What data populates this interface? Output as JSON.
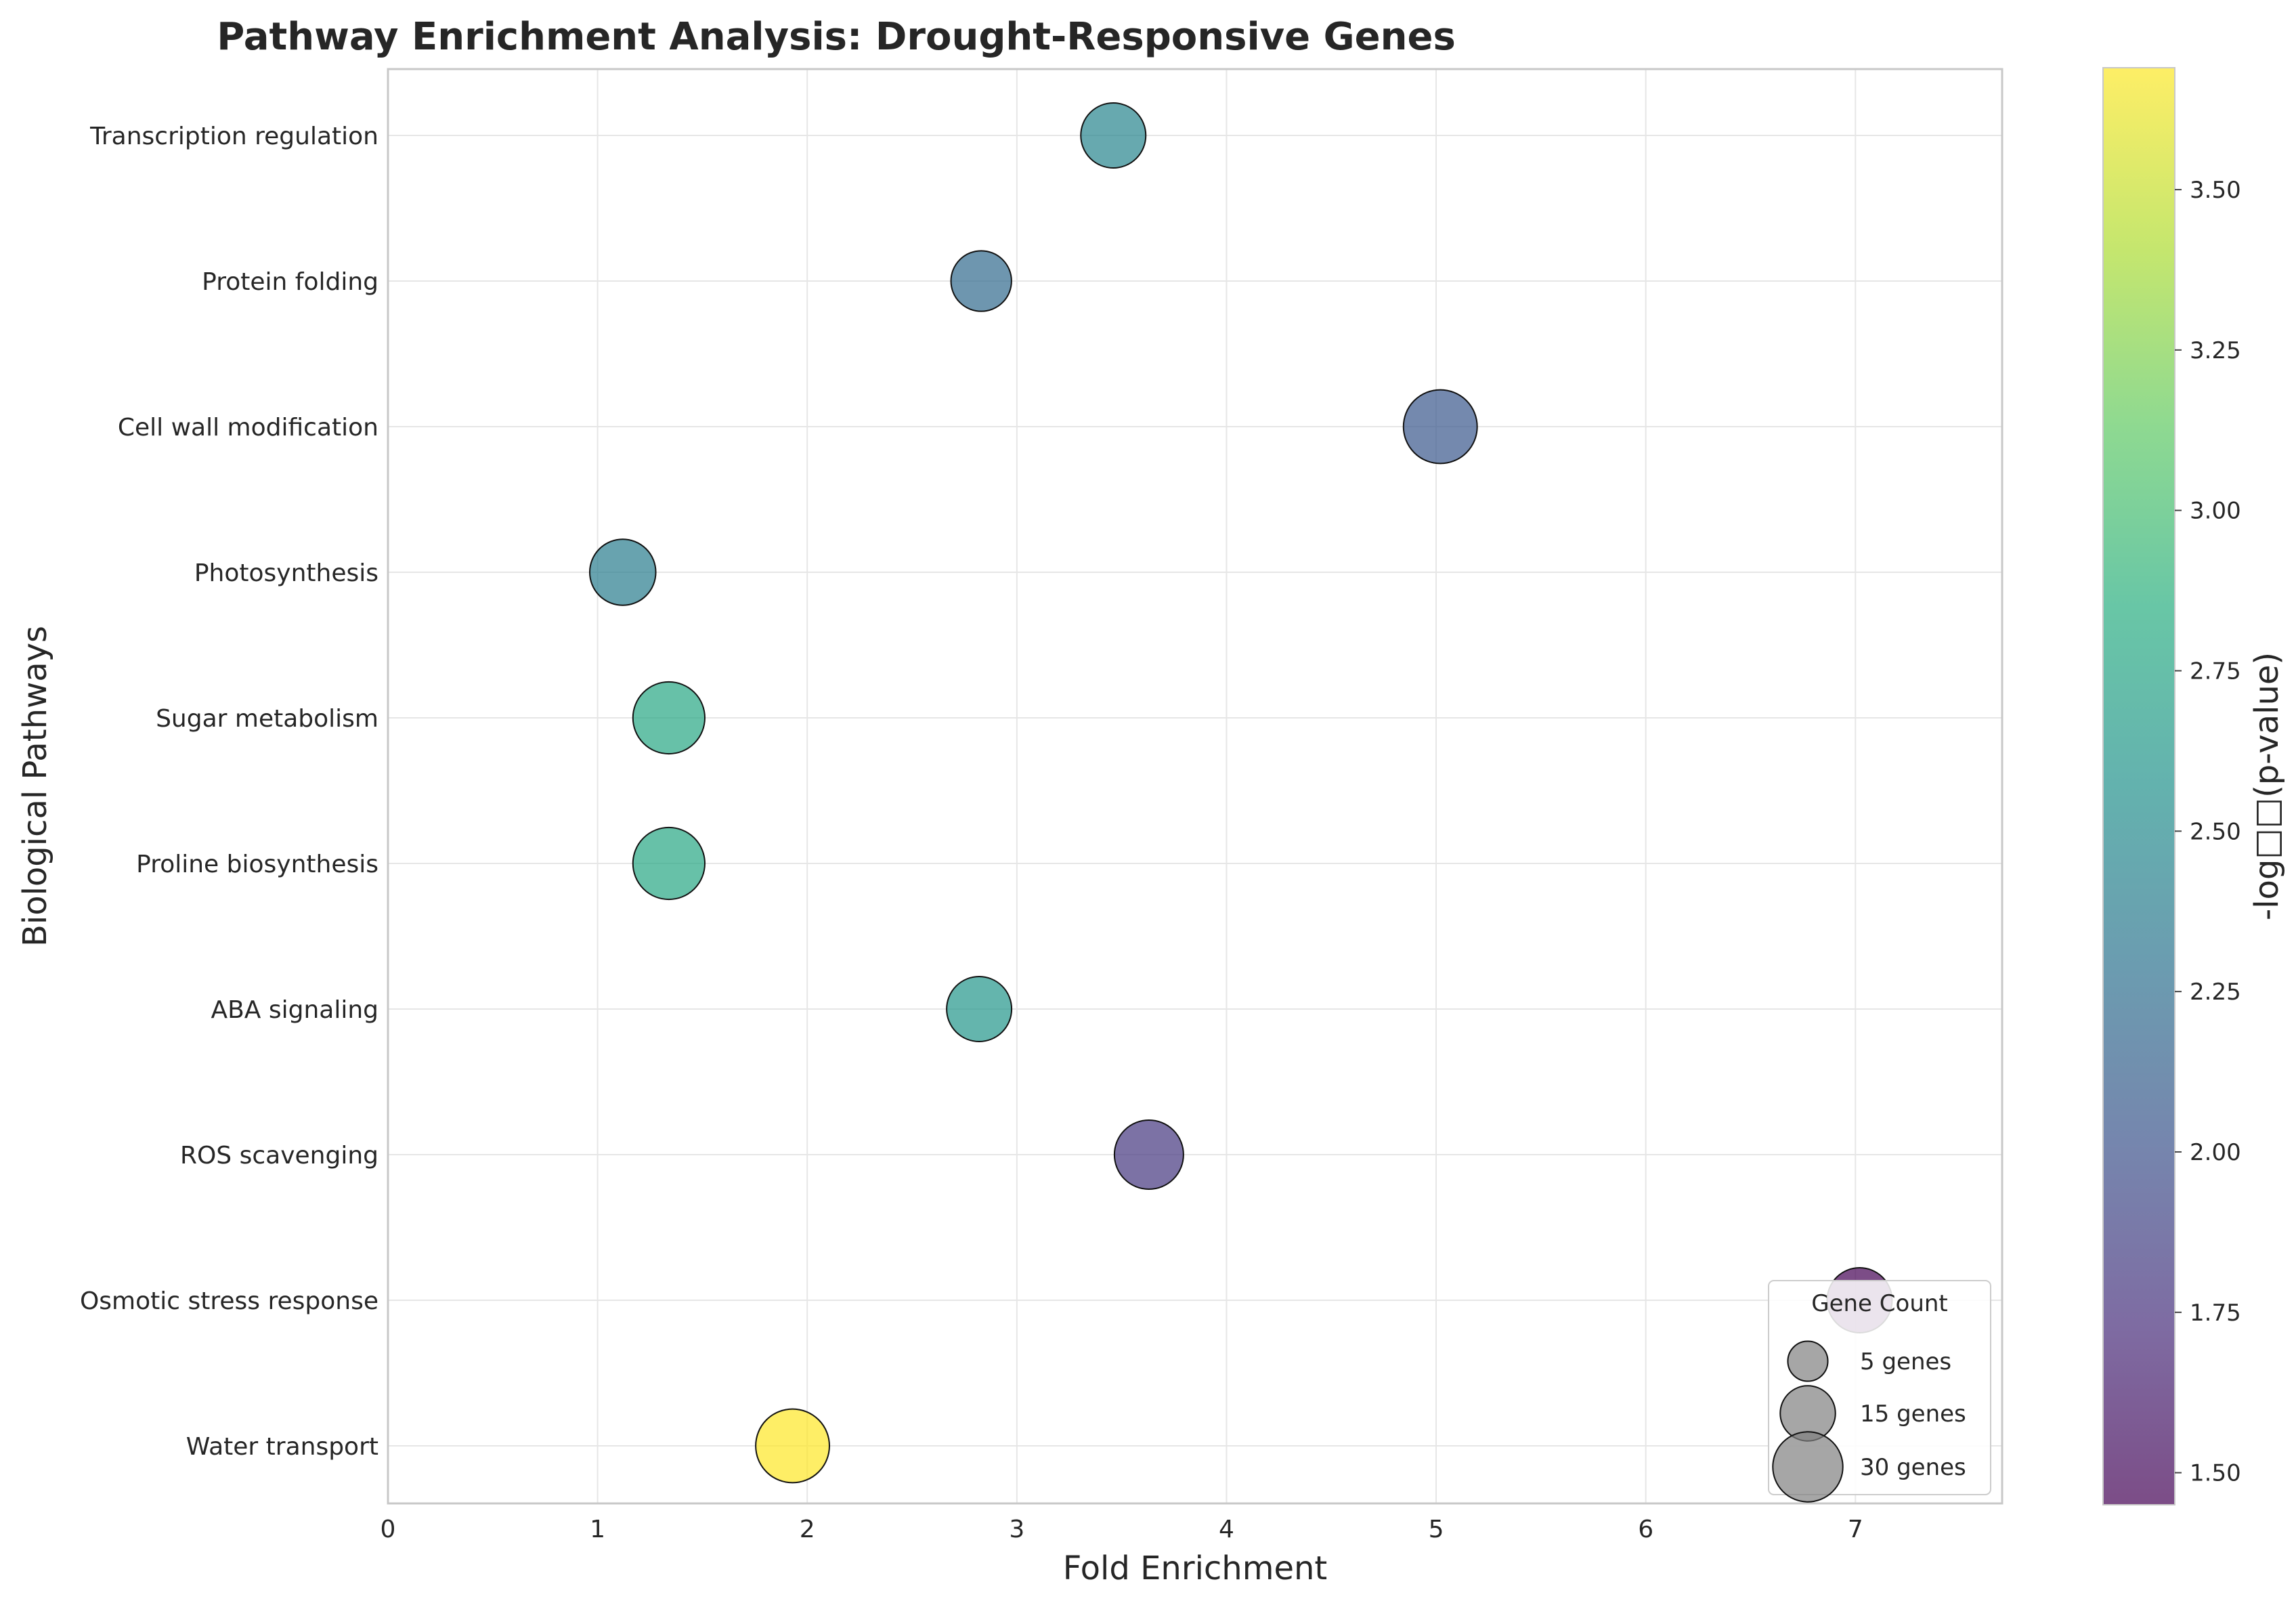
{
  "chart_data": {
    "type": "scatter",
    "title": "Pathway Enrichment Analysis: Drought-Responsive Genes",
    "xlabel": "Fold Enrichment",
    "ylabel": "Biological Pathways",
    "xlim": [
      0,
      7.7
    ],
    "xticks": [
      "0",
      "1",
      "2",
      "3",
      "4",
      "5",
      "6",
      "7"
    ],
    "grid": true,
    "colormap": "viridis",
    "colorbar": {
      "label": "-log□□(p-value)",
      "range": [
        1.45,
        3.69
      ],
      "ticks": [
        "1.50",
        "1.75",
        "2.00",
        "2.25",
        "2.50",
        "2.75",
        "3.00",
        "3.25",
        "3.50"
      ]
    },
    "categories": [
      "Water transport",
      "Osmotic stress response",
      "ROS scavenging",
      "ABA signaling",
      "Proline biosynthesis",
      "Sugar metabolism",
      "Photosynthesis",
      "Cell wall modification",
      "Protein folding",
      "Transcription regulation"
    ],
    "points": [
      {
        "pathway": "Water transport",
        "fold_enrichment": 1.93,
        "neg_log10_p": 3.69,
        "gene_count": 30
      },
      {
        "pathway": "Osmotic stress response",
        "fold_enrichment": 7.02,
        "neg_log10_p": 1.45,
        "gene_count": 21
      },
      {
        "pathway": "ROS scavenging",
        "fold_enrichment": 3.63,
        "neg_log10_p": 1.8,
        "gene_count": 25
      },
      {
        "pathway": "ABA signaling",
        "fold_enrichment": 2.82,
        "neg_log10_p": 2.62,
        "gene_count": 21
      },
      {
        "pathway": "Proline biosynthesis",
        "fold_enrichment": 1.34,
        "neg_log10_p": 2.78,
        "gene_count": 28
      },
      {
        "pathway": "Sugar metabolism",
        "fold_enrichment": 1.34,
        "neg_log10_p": 2.78,
        "gene_count": 28
      },
      {
        "pathway": "Photosynthesis",
        "fold_enrichment": 1.12,
        "neg_log10_p": 2.38,
        "gene_count": 22
      },
      {
        "pathway": "Cell wall modification",
        "fold_enrichment": 5.02,
        "neg_log10_p": 2.05,
        "gene_count": 30
      },
      {
        "pathway": "Protein folding",
        "fold_enrichment": 2.83,
        "neg_log10_p": 2.22,
        "gene_count": 17
      },
      {
        "pathway": "Transcription regulation",
        "fold_enrichment": 3.46,
        "neg_log10_p": 2.45,
        "gene_count": 21
      }
    ],
    "legend": {
      "title": "Gene Count",
      "placement": "lower right",
      "items": [
        {
          "label": "5 genes",
          "gene_count": 5
        },
        {
          "label": "15 genes",
          "gene_count": 15
        },
        {
          "label": "30 genes",
          "gene_count": 30
        }
      ]
    }
  }
}
